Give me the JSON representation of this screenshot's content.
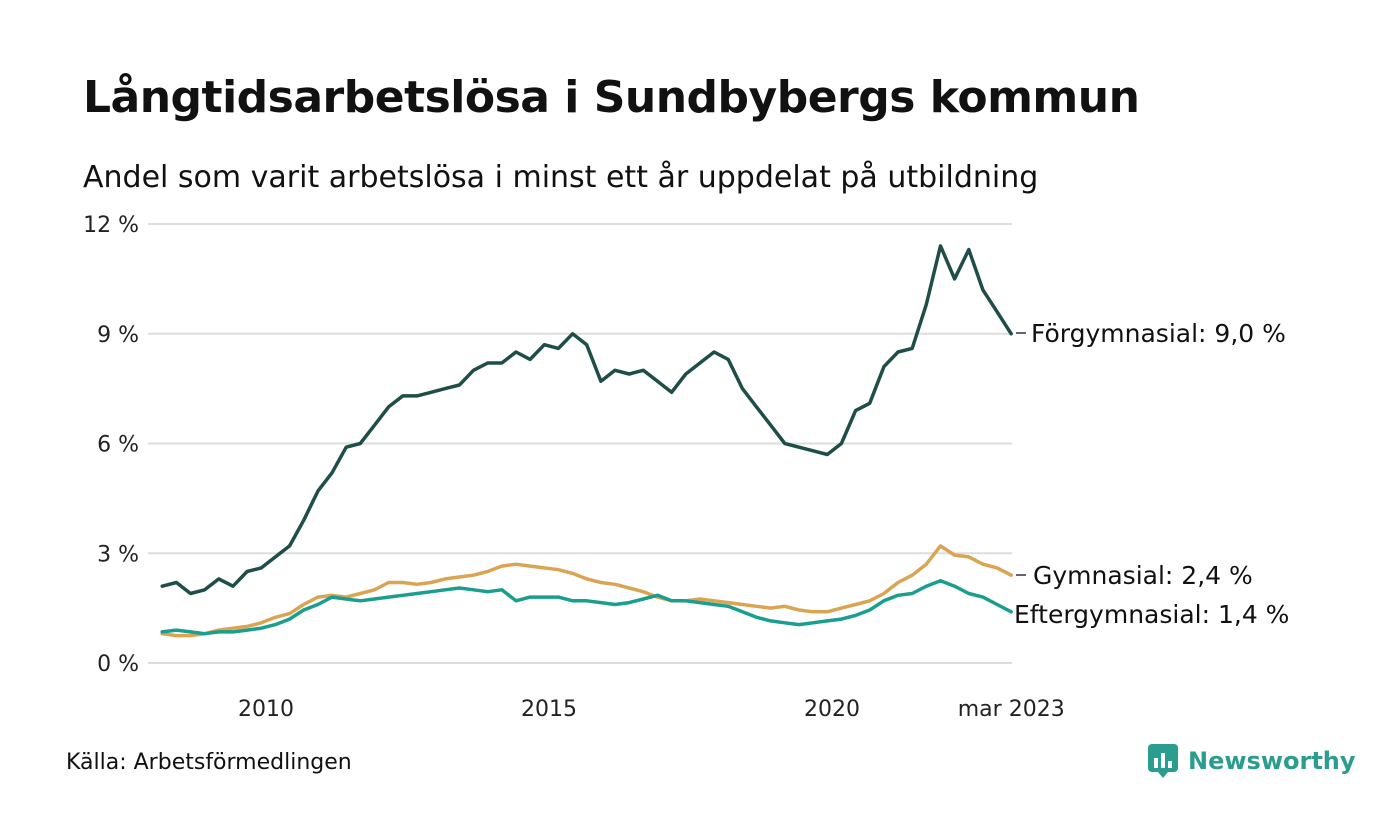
{
  "title": "Långtidsarbetslösa i Sundbybergs kommun",
  "subtitle": "Andel som varit arbetslösa i minst ett år uppdelat på utbildning",
  "source": "Källa: Arbetsförmedlingen",
  "brand": {
    "name": "Newsworthy",
    "icon": "newsworthy-logo-icon",
    "color": "#2a9d8f"
  },
  "chart_data": {
    "type": "line",
    "ylim": [
      0,
      12
    ],
    "y_ticks": [
      {
        "value": 0,
        "label": "0 %"
      },
      {
        "value": 3,
        "label": "3 %"
      },
      {
        "value": 6,
        "label": "6 %"
      },
      {
        "value": 9,
        "label": "9 %"
      },
      {
        "value": 12,
        "label": "12 %"
      }
    ],
    "x_ticks": [
      {
        "date": "2010-01",
        "label": "2010"
      },
      {
        "date": "2015-01",
        "label": "2015"
      },
      {
        "date": "2020-01",
        "label": "2020"
      },
      {
        "date": "2023-03",
        "label": "mar 2023"
      }
    ],
    "grid": true,
    "x": [
      "2008-03",
      "2008-06",
      "2008-09",
      "2008-12",
      "2009-03",
      "2009-06",
      "2009-09",
      "2009-12",
      "2010-03",
      "2010-06",
      "2010-09",
      "2010-12",
      "2011-03",
      "2011-06",
      "2011-09",
      "2011-12",
      "2012-03",
      "2012-06",
      "2012-09",
      "2012-12",
      "2013-03",
      "2013-06",
      "2013-09",
      "2013-12",
      "2014-03",
      "2014-06",
      "2014-09",
      "2014-12",
      "2015-03",
      "2015-06",
      "2015-09",
      "2015-12",
      "2016-03",
      "2016-06",
      "2016-09",
      "2016-12",
      "2017-03",
      "2017-06",
      "2017-09",
      "2017-12",
      "2018-03",
      "2018-06",
      "2018-09",
      "2018-12",
      "2019-03",
      "2019-06",
      "2019-09",
      "2019-12",
      "2020-03",
      "2020-06",
      "2020-09",
      "2020-12",
      "2021-03",
      "2021-06",
      "2021-09",
      "2021-12",
      "2022-03",
      "2022-06",
      "2022-09",
      "2022-12",
      "2023-03"
    ],
    "series": [
      {
        "name": "Förgymnasial",
        "label": "Förgymnasial: 9,0 %",
        "color": "#1f4e48",
        "values": [
          2.1,
          2.2,
          1.9,
          2.0,
          2.3,
          2.1,
          2.5,
          2.6,
          2.9,
          3.2,
          3.9,
          4.7,
          5.2,
          5.9,
          6.0,
          6.5,
          7.0,
          7.3,
          7.3,
          7.4,
          7.5,
          7.6,
          8.0,
          8.2,
          8.2,
          8.5,
          8.3,
          8.7,
          8.6,
          9.0,
          8.7,
          7.7,
          8.0,
          7.9,
          8.0,
          7.7,
          7.4,
          7.9,
          8.2,
          8.5,
          8.3,
          7.5,
          7.0,
          6.5,
          6.0,
          5.9,
          5.8,
          5.7,
          6.0,
          6.9,
          7.1,
          8.1,
          8.5,
          8.6,
          9.8,
          11.4,
          10.5,
          11.3,
          10.2,
          9.6,
          9.0
        ]
      },
      {
        "name": "Gymnasial",
        "label": "Gymnasial: 2,4 %",
        "color": "#d9a552",
        "values": [
          0.8,
          0.75,
          0.75,
          0.8,
          0.9,
          0.95,
          1.0,
          1.1,
          1.25,
          1.35,
          1.6,
          1.8,
          1.85,
          1.8,
          1.9,
          2.0,
          2.2,
          2.2,
          2.15,
          2.2,
          2.3,
          2.35,
          2.4,
          2.5,
          2.65,
          2.7,
          2.65,
          2.6,
          2.55,
          2.45,
          2.3,
          2.2,
          2.15,
          2.05,
          1.95,
          1.8,
          1.7,
          1.7,
          1.75,
          1.7,
          1.65,
          1.6,
          1.55,
          1.5,
          1.55,
          1.45,
          1.4,
          1.4,
          1.5,
          1.6,
          1.7,
          1.9,
          2.2,
          2.4,
          2.7,
          3.2,
          2.95,
          2.9,
          2.7,
          2.6,
          2.4
        ]
      },
      {
        "name": "Eftergymnasial",
        "label": "Eftergymnasial: 1,4 %",
        "color": "#1a9e8e",
        "values": [
          0.85,
          0.9,
          0.85,
          0.8,
          0.85,
          0.85,
          0.9,
          0.95,
          1.05,
          1.2,
          1.45,
          1.6,
          1.8,
          1.75,
          1.7,
          1.75,
          1.8,
          1.85,
          1.9,
          1.95,
          2.0,
          2.05,
          2.0,
          1.95,
          2.0,
          1.7,
          1.8,
          1.8,
          1.8,
          1.7,
          1.7,
          1.65,
          1.6,
          1.65,
          1.75,
          1.85,
          1.7,
          1.7,
          1.65,
          1.6,
          1.55,
          1.4,
          1.25,
          1.15,
          1.1,
          1.05,
          1.1,
          1.15,
          1.2,
          1.3,
          1.45,
          1.7,
          1.85,
          1.9,
          2.1,
          2.25,
          2.1,
          1.9,
          1.8,
          1.6,
          1.4
        ]
      }
    ]
  }
}
